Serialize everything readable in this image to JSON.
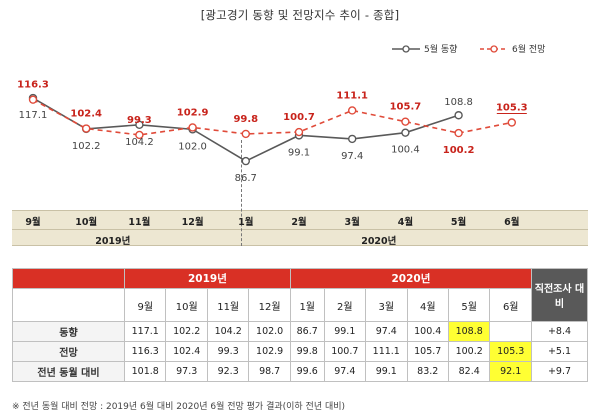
{
  "title": "[광고경기 동향 및 전망지수 추이 - 종합]",
  "chart_data": {
    "type": "line",
    "categories": [
      "9월",
      "10월",
      "11월",
      "12월",
      "1월",
      "2월",
      "3월",
      "4월",
      "5월",
      "6월"
    ],
    "years": [
      {
        "label": "2019년",
        "months": [
          "9월",
          "10월",
          "11월",
          "12월"
        ]
      },
      {
        "label": "2020년",
        "months": [
          "1월",
          "2월",
          "3월",
          "4월",
          "5월",
          "6월"
        ]
      }
    ],
    "series": [
      {
        "name": "5월 동향",
        "color": "#595959",
        "dash": false,
        "values": [
          117.1,
          102.2,
          104.2,
          102.0,
          86.7,
          99.1,
          97.4,
          100.4,
          108.8,
          null
        ],
        "labels": [
          "117.1",
          "102.2",
          "104.2",
          "102.0",
          "86.7",
          "99.1",
          "97.4",
          "100.4",
          "108.8",
          ""
        ]
      },
      {
        "name": "6월 전망",
        "color": "#e04b3a",
        "dash": true,
        "values": [
          116.3,
          102.4,
          99.3,
          102.9,
          99.8,
          100.7,
          111.1,
          105.7,
          100.2,
          105.3
        ],
        "labels": [
          "116.3",
          "102.4",
          "99.3",
          "102.9",
          "99.8",
          "100.7",
          "111.1",
          "105.7",
          "100.2",
          "105.3"
        ]
      }
    ],
    "ylim": [
      80,
      125
    ],
    "legend_position": "top-right",
    "grid": false
  },
  "table": {
    "year_headers": [
      "2019년",
      "2020년"
    ],
    "last_header": "직전조사 대비",
    "months": [
      "9월",
      "10월",
      "11월",
      "12월",
      "1월",
      "2월",
      "3월",
      "4월",
      "5월",
      "6월"
    ],
    "rows": [
      {
        "label": "동향",
        "cells": [
          "117.1",
          "102.2",
          "104.2",
          "102.0",
          "86.7",
          "99.1",
          "97.4",
          "100.4",
          "108.8",
          ""
        ],
        "change": "+8.4",
        "highlight": 8
      },
      {
        "label": "전망",
        "cells": [
          "116.3",
          "102.4",
          "99.3",
          "102.9",
          "99.8",
          "100.7",
          "111.1",
          "105.7",
          "100.2",
          "105.3"
        ],
        "change": "+5.1",
        "highlight": 9
      },
      {
        "label": "전년 동월 대비",
        "cells": [
          "101.8",
          "97.3",
          "92.3",
          "98.7",
          "99.6",
          "97.4",
          "99.1",
          "83.2",
          "82.4",
          "92.1"
        ],
        "change": "+9.7",
        "highlight": 9
      }
    ]
  },
  "footnote": "※ 전년 동월 대비 전망 : 2019년 6월 대비 2020년 6월 전망 평가 결과(이하 전년 대비)"
}
